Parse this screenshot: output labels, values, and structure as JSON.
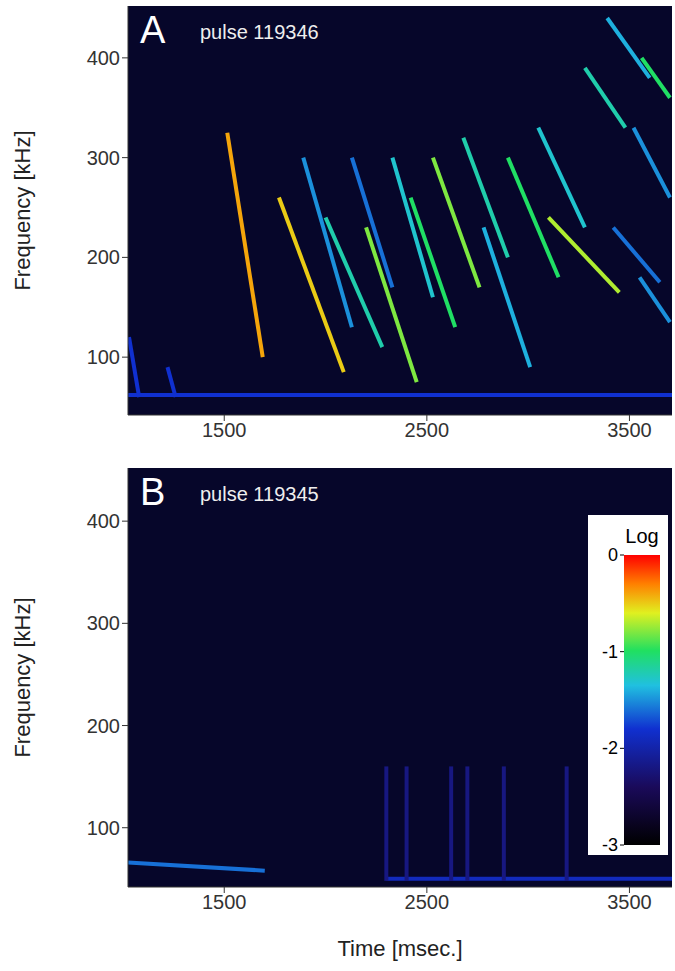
{
  "colorbar": {
    "label": "Log",
    "range": [
      -3,
      0
    ],
    "ticks": [
      0,
      -1,
      -2,
      -3
    ]
  },
  "chart_data": [
    {
      "type": "line",
      "panel": "A",
      "title": "pulse 119346",
      "ylabel": "Frequency [kHz]",
      "grid": false,
      "xlim": [
        1025,
        3710
      ],
      "xticks": [
        1500,
        2500,
        3500
      ],
      "ylim": [
        42,
        452
      ],
      "yticks": [
        100,
        200,
        300,
        400
      ],
      "series": [
        {
          "x": [
            1025,
            3710
          ],
          "values": [
            62,
            62
          ],
          "level": -1.8
        },
        {
          "x": [
            1030,
            1080
          ],
          "values": [
            120,
            60
          ],
          "level": -1.8
        },
        {
          "x": [
            1220,
            1260
          ],
          "values": [
            90,
            60
          ],
          "level": -1.8
        },
        {
          "x": [
            1515,
            1690
          ],
          "values": [
            325,
            100
          ],
          "level": -0.4
        },
        {
          "x": [
            1770,
            2090
          ],
          "values": [
            260,
            85
          ],
          "level": -0.5
        },
        {
          "x": [
            1890,
            2130
          ],
          "values": [
            300,
            130
          ],
          "level": -1.5
        },
        {
          "x": [
            2000,
            2280
          ],
          "values": [
            240,
            110
          ],
          "level": -1.2
        },
        {
          "x": [
            2130,
            2330
          ],
          "values": [
            300,
            170
          ],
          "level": -1.6
        },
        {
          "x": [
            2200,
            2450
          ],
          "values": [
            230,
            75
          ],
          "level": -0.8
        },
        {
          "x": [
            2330,
            2530
          ],
          "values": [
            300,
            160
          ],
          "level": -1.3
        },
        {
          "x": [
            2420,
            2640
          ],
          "values": [
            260,
            130
          ],
          "level": -1.0
        },
        {
          "x": [
            2530,
            2760
          ],
          "values": [
            300,
            170
          ],
          "level": -0.8
        },
        {
          "x": [
            2680,
            2900
          ],
          "values": [
            320,
            200
          ],
          "level": -1.2
        },
        {
          "x": [
            2780,
            3010
          ],
          "values": [
            230,
            90
          ],
          "level": -1.4
        },
        {
          "x": [
            2900,
            3150
          ],
          "values": [
            300,
            180
          ],
          "level": -1.0
        },
        {
          "x": [
            3050,
            3280
          ],
          "values": [
            330,
            230
          ],
          "level": -1.3
        },
        {
          "x": [
            3100,
            3450
          ],
          "values": [
            240,
            165
          ],
          "level": -0.7
        },
        {
          "x": [
            3280,
            3480
          ],
          "values": [
            390,
            330
          ],
          "level": -1.2
        },
        {
          "x": [
            3390,
            3600
          ],
          "values": [
            440,
            380
          ],
          "level": -1.4
        },
        {
          "x": [
            3420,
            3650
          ],
          "values": [
            230,
            175
          ],
          "level": -1.6
        },
        {
          "x": [
            3520,
            3700
          ],
          "values": [
            330,
            260
          ],
          "level": -1.5
        },
        {
          "x": [
            3550,
            3700
          ],
          "values": [
            180,
            135
          ],
          "level": -1.5
        },
        {
          "x": [
            3560,
            3700
          ],
          "values": [
            400,
            360
          ],
          "level": -1.0
        }
      ]
    },
    {
      "type": "line",
      "panel": "B",
      "title": "pulse 119345",
      "ylabel": "Frequency [kHz]",
      "xlabel": "Time [msec.]",
      "grid": false,
      "xlim": [
        1025,
        3710
      ],
      "xticks": [
        1500,
        2500,
        3500
      ],
      "ylim": [
        42,
        452
      ],
      "yticks": [
        100,
        200,
        300,
        400
      ],
      "series": [
        {
          "x": [
            1025,
            1700
          ],
          "values": [
            66,
            58
          ],
          "level": -1.6
        },
        {
          "x": [
            2300,
            3710
          ],
          "values": [
            50,
            50
          ],
          "level": -1.9
        },
        {
          "x": [
            2300,
            2300
          ],
          "values": [
            48,
            160
          ],
          "level": -2.2
        },
        {
          "x": [
            2400,
            2400
          ],
          "values": [
            48,
            160
          ],
          "level": -2.2
        },
        {
          "x": [
            2620,
            2620
          ],
          "values": [
            48,
            160
          ],
          "level": -2.2
        },
        {
          "x": [
            2700,
            2700
          ],
          "values": [
            48,
            160
          ],
          "level": -2.2
        },
        {
          "x": [
            2880,
            2880
          ],
          "values": [
            48,
            160
          ],
          "level": -2.2
        },
        {
          "x": [
            3190,
            3190
          ],
          "values": [
            48,
            160
          ],
          "level": -2.2
        }
      ]
    }
  ]
}
